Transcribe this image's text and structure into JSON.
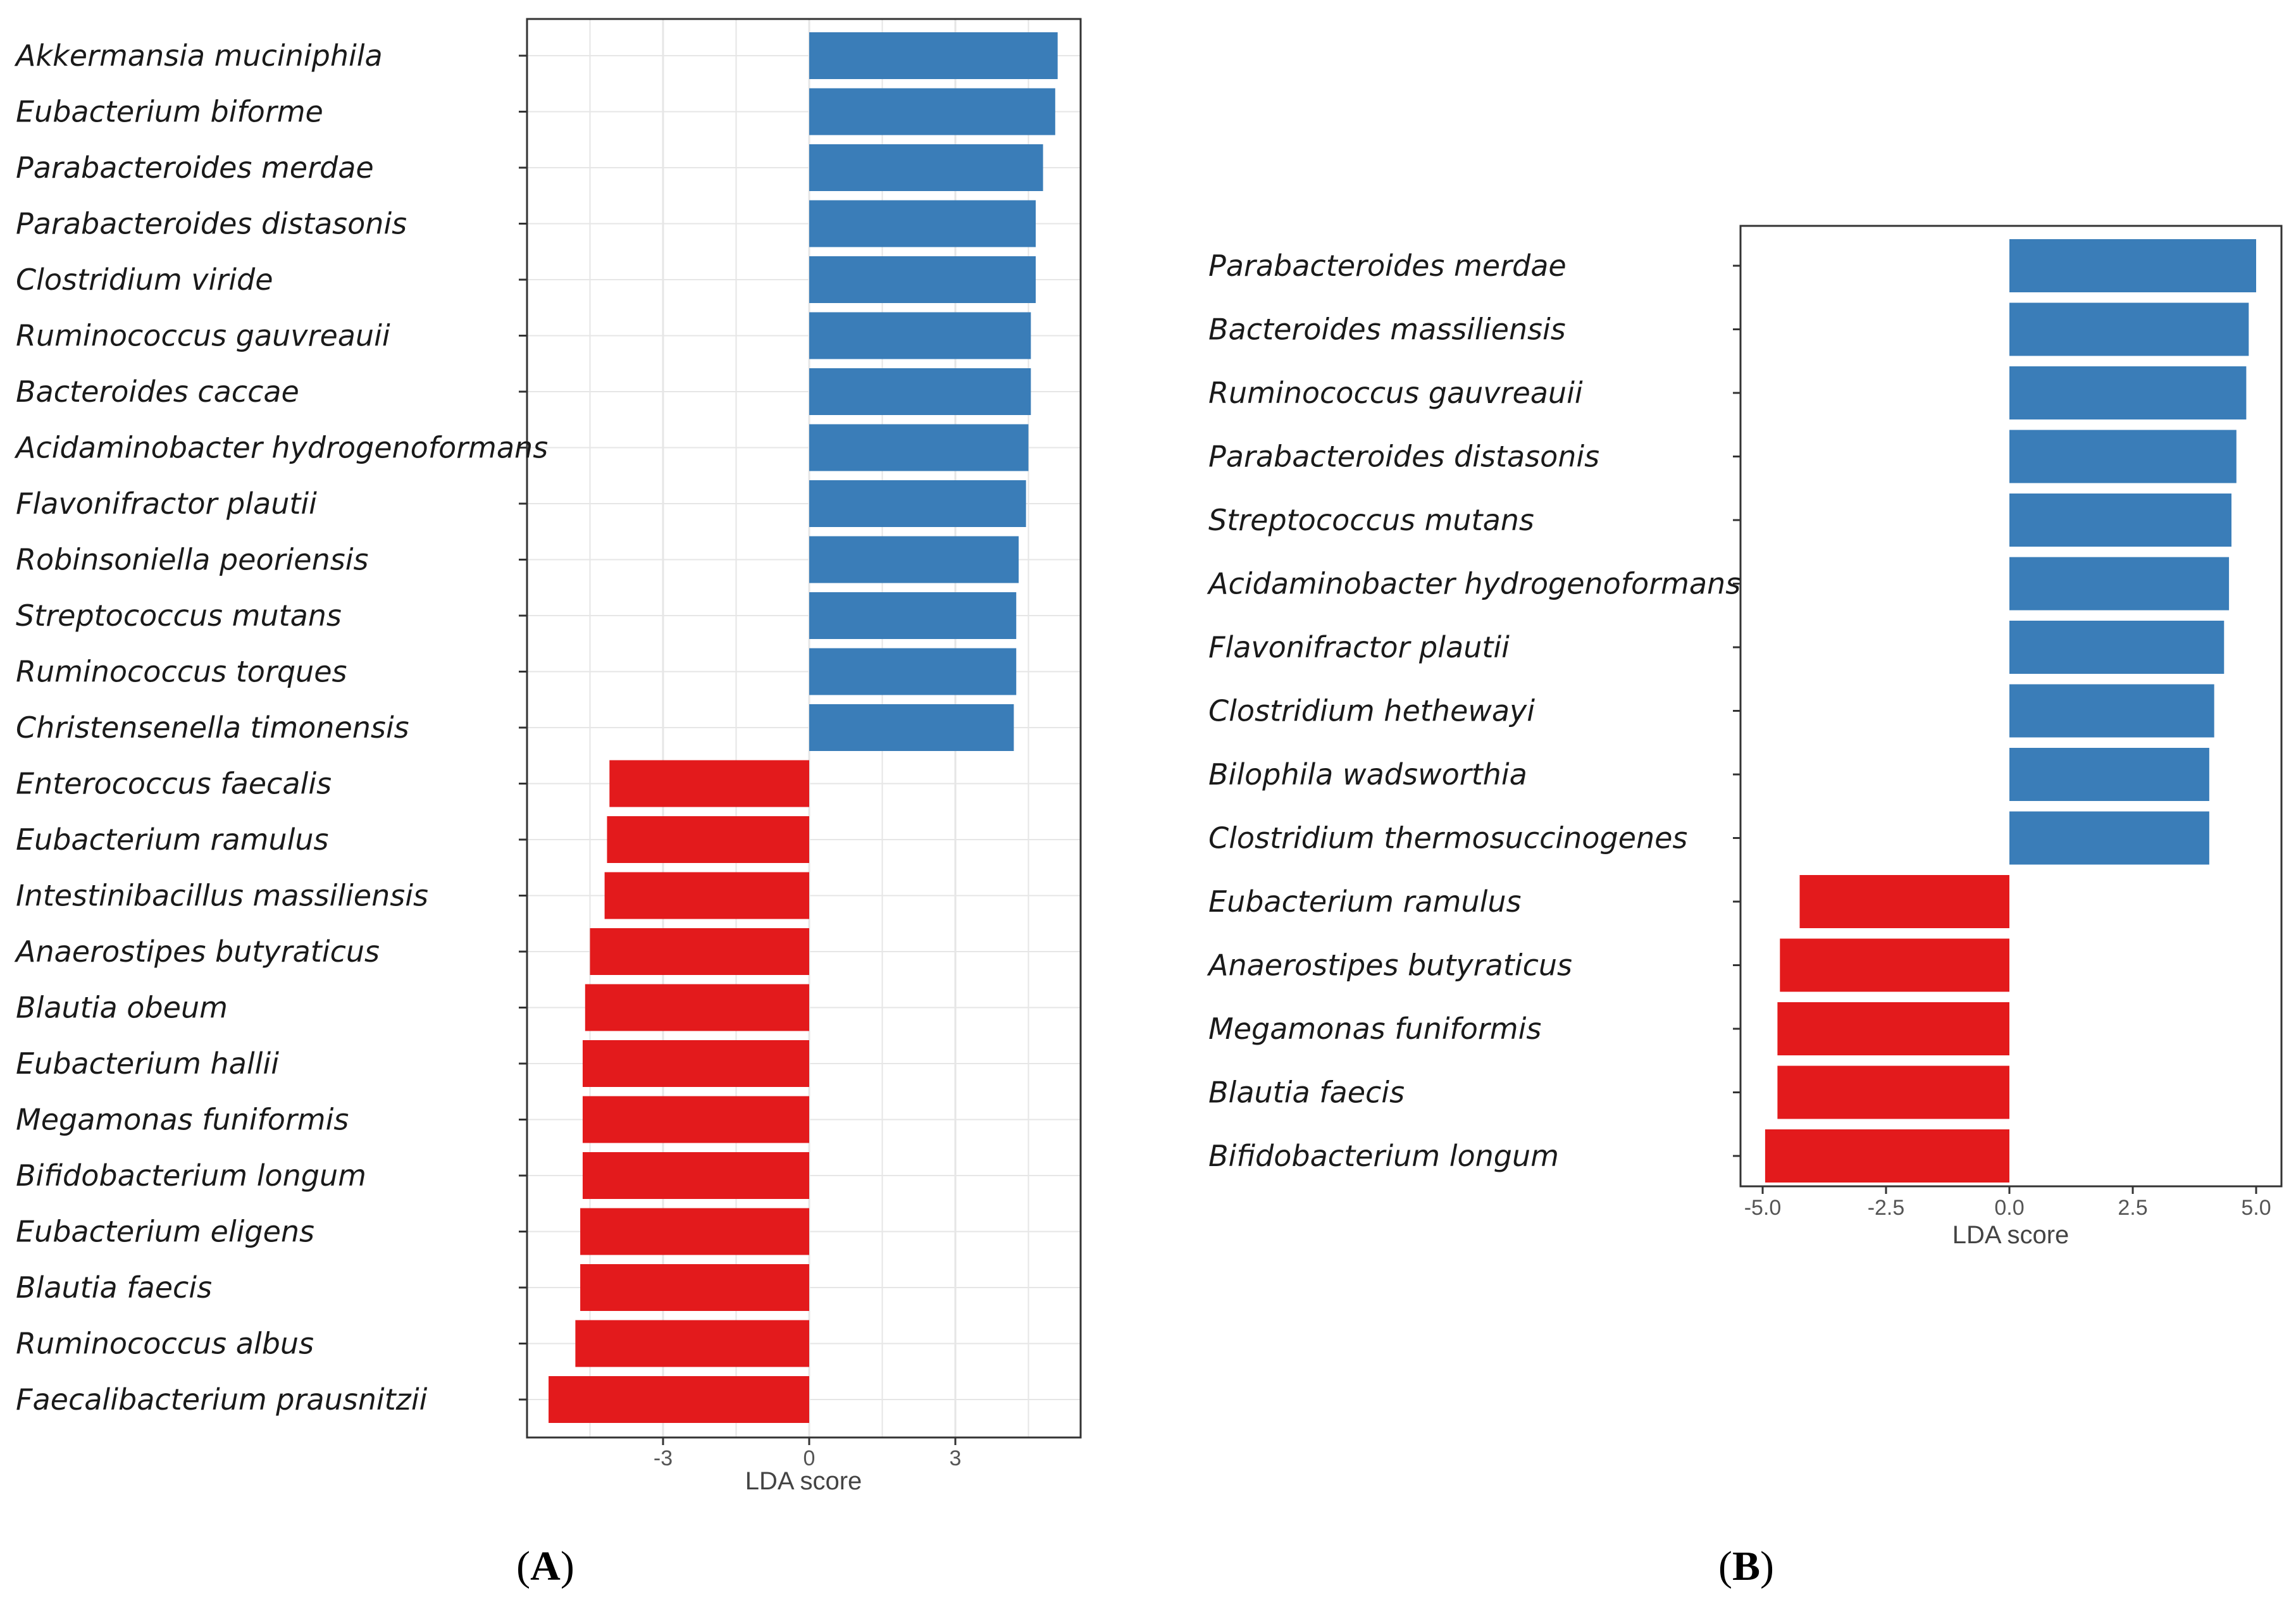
{
  "colors": {
    "positive": "#3a7db8",
    "negative": "#e31a1c",
    "grid": "#e6e6e6",
    "frame": "#333333"
  },
  "chart_data": [
    {
      "type": "bar",
      "orientation": "horizontal",
      "panel_label": "A",
      "xlabel": "LDA score",
      "xlim": [
        -5.6,
        5.6
      ],
      "xticks": [
        -3,
        0,
        3
      ],
      "xtick_labels": [
        "-3",
        "0",
        "3"
      ],
      "grid": true,
      "categories": [
        "Akkermansia muciniphila",
        "Eubacterium biforme",
        "Parabacteroides merdae",
        "Parabacteroides distasonis",
        "Clostridium viride",
        "Ruminococcus gauvreauii",
        "Bacteroides caccae",
        "Acidaminobacter hydrogenoformans",
        "Flavonifractor plautii",
        "Robinsoniella peoriensis",
        "Streptococcus mutans",
        "Ruminococcus torques",
        "Christensenella timonensis",
        "Enterococcus faecalis",
        "Eubacterium ramulus",
        "Intestinibacillus massiliensis",
        "Anaerostipes butyraticus",
        "Blautia obeum",
        "Eubacterium hallii",
        "Megamonas funiformis",
        "Bifidobacterium longum",
        "Eubacterium eligens",
        "Blautia faecis",
        "Ruminococcus albus",
        "Faecalibacterium prausnitzii"
      ],
      "values": [
        5.1,
        5.05,
        4.8,
        4.65,
        4.65,
        4.55,
        4.55,
        4.5,
        4.45,
        4.3,
        4.25,
        4.25,
        4.2,
        -4.1,
        -4.15,
        -4.2,
        -4.5,
        -4.6,
        -4.65,
        -4.65,
        -4.65,
        -4.7,
        -4.7,
        -4.8,
        -5.35
      ]
    },
    {
      "type": "bar",
      "orientation": "horizontal",
      "panel_label": "B",
      "xlabel": "LDA score",
      "xlim": [
        -5.5,
        5.5
      ],
      "xticks": [
        -5,
        -2.5,
        0,
        2.5,
        5
      ],
      "xtick_labels": [
        "-5.0",
        "-2.5",
        "0.0",
        "2.5",
        "5.0"
      ],
      "grid": false,
      "categories": [
        "Parabacteroides merdae",
        "Bacteroides massiliensis",
        "Ruminococcus gauvreauii",
        "Parabacteroides distasonis",
        "Streptococcus mutans",
        "Acidaminobacter hydrogenoformans",
        "Flavonifractor plautii",
        "Clostridium hethewayi",
        "Bilophila wadsworthia",
        "Clostridium thermosuccinogenes",
        "Eubacterium ramulus",
        "Anaerostipes butyraticus",
        "Megamonas funiformis",
        "Blautia faecis",
        "Bifidobacterium longum"
      ],
      "values": [
        5.0,
        4.85,
        4.8,
        4.6,
        4.5,
        4.45,
        4.35,
        4.15,
        4.05,
        4.05,
        -4.25,
        -4.65,
        -4.7,
        -4.7,
        -4.95
      ]
    }
  ]
}
